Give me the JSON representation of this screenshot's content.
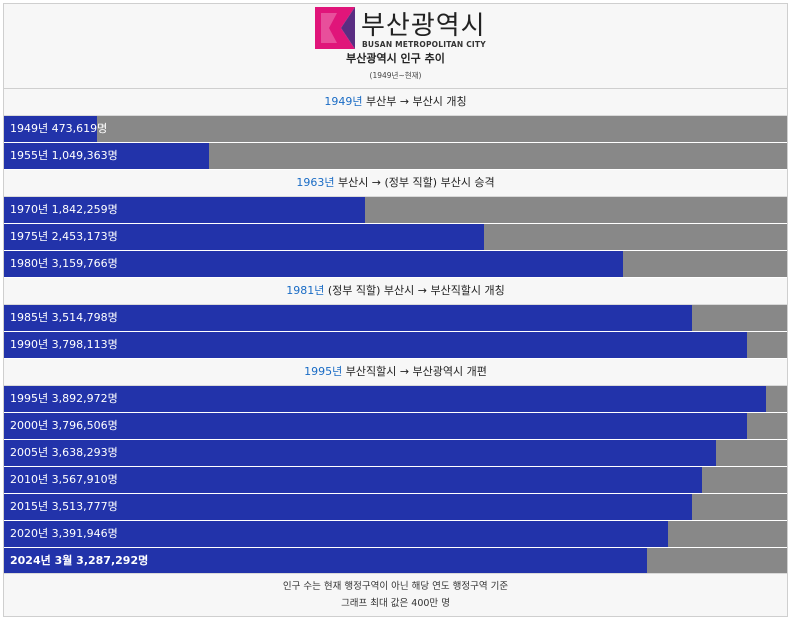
{
  "header": {
    "logo_name": "부산광역시",
    "logo_sub": "BUSAN METROPOLITAN CITY",
    "title": "부산광역시 인구 추이",
    "subtitle": "(1949년~현재)"
  },
  "sections": [
    {
      "year": "1949년",
      "text": " 부산부 → 부산시 개칭"
    },
    {
      "year": "1963년",
      "text": " 부산시 → (정부 직할) 부산시 승격"
    },
    {
      "year": "1981년",
      "text": " (정부 직할) 부산시 → 부산직할시 개칭"
    },
    {
      "year": "1995년",
      "text": " 부산직할시 → 부산광역시 개편"
    }
  ],
  "rows": [
    {
      "label": "1949년 473,619명"
    },
    {
      "label": "1955년 1,049,363명"
    },
    {
      "label": "1970년 1,842,259명"
    },
    {
      "label": "1975년 2,453,173명"
    },
    {
      "label": "1980년 3,159,766명"
    },
    {
      "label": "1985년 3,514,798명"
    },
    {
      "label": "1990년 3,798,113명"
    },
    {
      "label": "1995년 3,892,972명"
    },
    {
      "label": "2000년 3,796,506명"
    },
    {
      "label": "2005년 3,638,293명"
    },
    {
      "label": "2010년 3,567,910명"
    },
    {
      "label": "2015년 3,513,777명"
    },
    {
      "label": "2020년 3,391,946명"
    },
    {
      "label": "2024년 3월 3,287,292명"
    }
  ],
  "footer": {
    "line1": "인구 수는 현재 행정구역이 아닌 해당 연도 행정구역 기준",
    "line2": "그래프 최대 값은 400만 명"
  },
  "colors": {
    "bar_fill": "#2233aa",
    "bar_track": "#888888",
    "year_link": "#1a6cc5",
    "logo_magenta": "#e0157a",
    "logo_purple": "#5a2d82"
  },
  "chart_data": {
    "type": "bar",
    "orientation": "horizontal",
    "categories": [
      "1949년",
      "1955년",
      "1970년",
      "1975년",
      "1980년",
      "1985년",
      "1990년",
      "1995년",
      "2000년",
      "2005년",
      "2010년",
      "2015년",
      "2020년",
      "2024년 3월"
    ],
    "values": [
      473619,
      1049363,
      1842259,
      2453173,
      3159766,
      3514798,
      3798113,
      3892972,
      3796506,
      3638293,
      3567910,
      3513777,
      3391946,
      3287292
    ],
    "xlim": [
      0,
      4000000
    ],
    "title": "부산광역시 인구 추이",
    "subtitle": "(1949년~현재)"
  }
}
